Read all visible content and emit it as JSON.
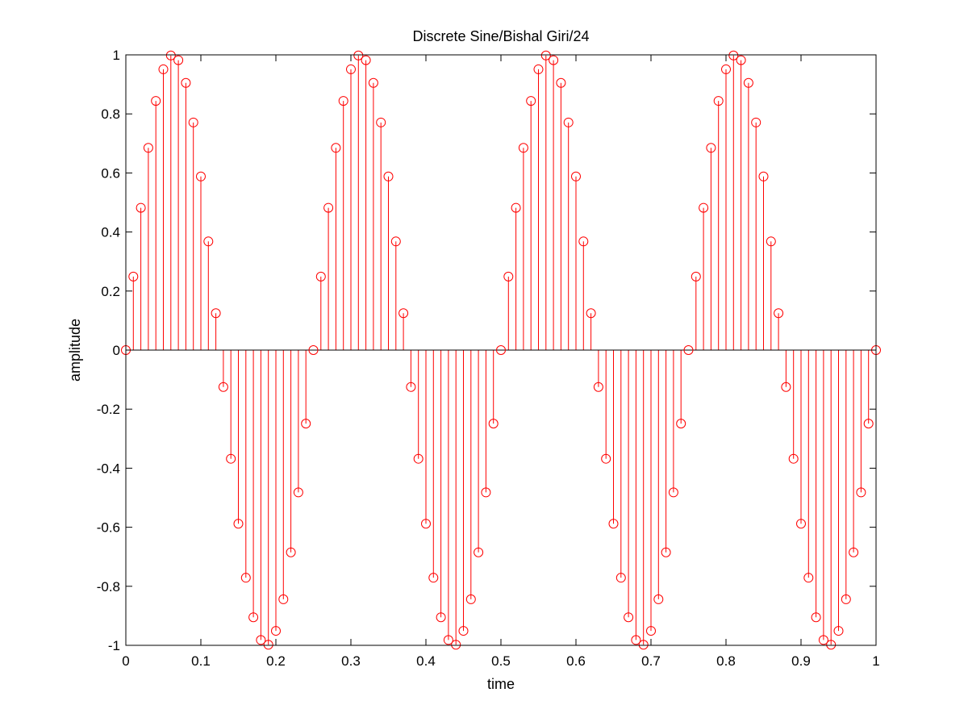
{
  "chart_data": {
    "type": "stem",
    "title": "Discrete Sine/Bishal Giri/24",
    "xlabel": "time",
    "ylabel": "amplitude",
    "xlim": [
      0,
      1
    ],
    "ylim": [
      -1,
      1
    ],
    "xticks": [
      0,
      0.1,
      0.2,
      0.3,
      0.4,
      0.5,
      0.6,
      0.7,
      0.8,
      0.9,
      1
    ],
    "xtick_labels": [
      "0",
      "0.1",
      "0.2",
      "0.3",
      "0.4",
      "0.5",
      "0.6",
      "0.7",
      "0.8",
      "0.9",
      "1"
    ],
    "yticks": [
      -1,
      -0.8,
      -0.6,
      -0.4,
      -0.2,
      0,
      0.2,
      0.4,
      0.6,
      0.8,
      1
    ],
    "ytick_labels": [
      "-1",
      "-0.8",
      "-0.6",
      "-0.4",
      "-0.2",
      "0",
      "0.2",
      "0.4",
      "0.6",
      "0.8",
      "1"
    ],
    "grid": false,
    "series": [
      {
        "color": "#ff0000",
        "marker": "circle",
        "x": [
          0,
          0.01,
          0.02,
          0.03,
          0.04,
          0.05,
          0.06,
          0.07,
          0.08,
          0.09,
          0.1,
          0.11,
          0.12,
          0.13,
          0.14,
          0.15,
          0.16,
          0.17,
          0.18,
          0.19,
          0.2,
          0.21,
          0.22,
          0.23,
          0.24,
          0.25,
          0.26,
          0.27,
          0.28,
          0.29,
          0.3,
          0.31,
          0.32,
          0.33,
          0.34,
          0.35,
          0.36,
          0.37,
          0.38,
          0.39,
          0.4,
          0.41,
          0.42,
          0.43,
          0.44,
          0.45,
          0.46,
          0.47,
          0.48,
          0.49,
          0.5,
          0.51,
          0.52,
          0.53,
          0.54,
          0.55,
          0.56,
          0.57,
          0.58,
          0.59,
          0.6,
          0.61,
          0.62,
          0.63,
          0.64,
          0.65,
          0.66,
          0.67,
          0.68,
          0.69,
          0.7,
          0.71,
          0.72,
          0.73,
          0.74,
          0.75,
          0.76,
          0.77,
          0.78,
          0.79,
          0.8,
          0.81,
          0.82,
          0.83,
          0.84,
          0.85,
          0.86,
          0.87,
          0.88,
          0.89,
          0.9,
          0.91,
          0.92,
          0.93,
          0.94,
          0.95,
          0.96,
          0.97,
          0.98,
          0.99,
          1
        ],
        "y": [
          0,
          0.249,
          0.482,
          0.685,
          0.844,
          0.951,
          0.998,
          0.982,
          0.905,
          0.771,
          0.588,
          0.368,
          0.125,
          -0.125,
          -0.368,
          -0.588,
          -0.771,
          -0.905,
          -0.982,
          -0.998,
          -0.951,
          -0.844,
          -0.685,
          -0.482,
          -0.249,
          0,
          0.249,
          0.482,
          0.685,
          0.844,
          0.951,
          0.998,
          0.982,
          0.905,
          0.771,
          0.588,
          0.368,
          0.125,
          -0.125,
          -0.368,
          -0.588,
          -0.771,
          -0.905,
          -0.982,
          -0.998,
          -0.951,
          -0.844,
          -0.685,
          -0.482,
          -0.249,
          0,
          0.249,
          0.482,
          0.685,
          0.844,
          0.951,
          0.998,
          0.982,
          0.905,
          0.771,
          0.588,
          0.368,
          0.125,
          -0.125,
          -0.368,
          -0.588,
          -0.771,
          -0.905,
          -0.982,
          -0.998,
          -0.951,
          -0.844,
          -0.685,
          -0.482,
          -0.249,
          0,
          0.249,
          0.482,
          0.685,
          0.844,
          0.951,
          0.998,
          0.982,
          0.905,
          0.771,
          0.588,
          0.368,
          0.125,
          -0.125,
          -0.368,
          -0.588,
          -0.771,
          -0.905,
          -0.982,
          -0.998,
          -0.951,
          -0.844,
          -0.685,
          -0.482,
          -0.249,
          0
        ]
      }
    ]
  }
}
